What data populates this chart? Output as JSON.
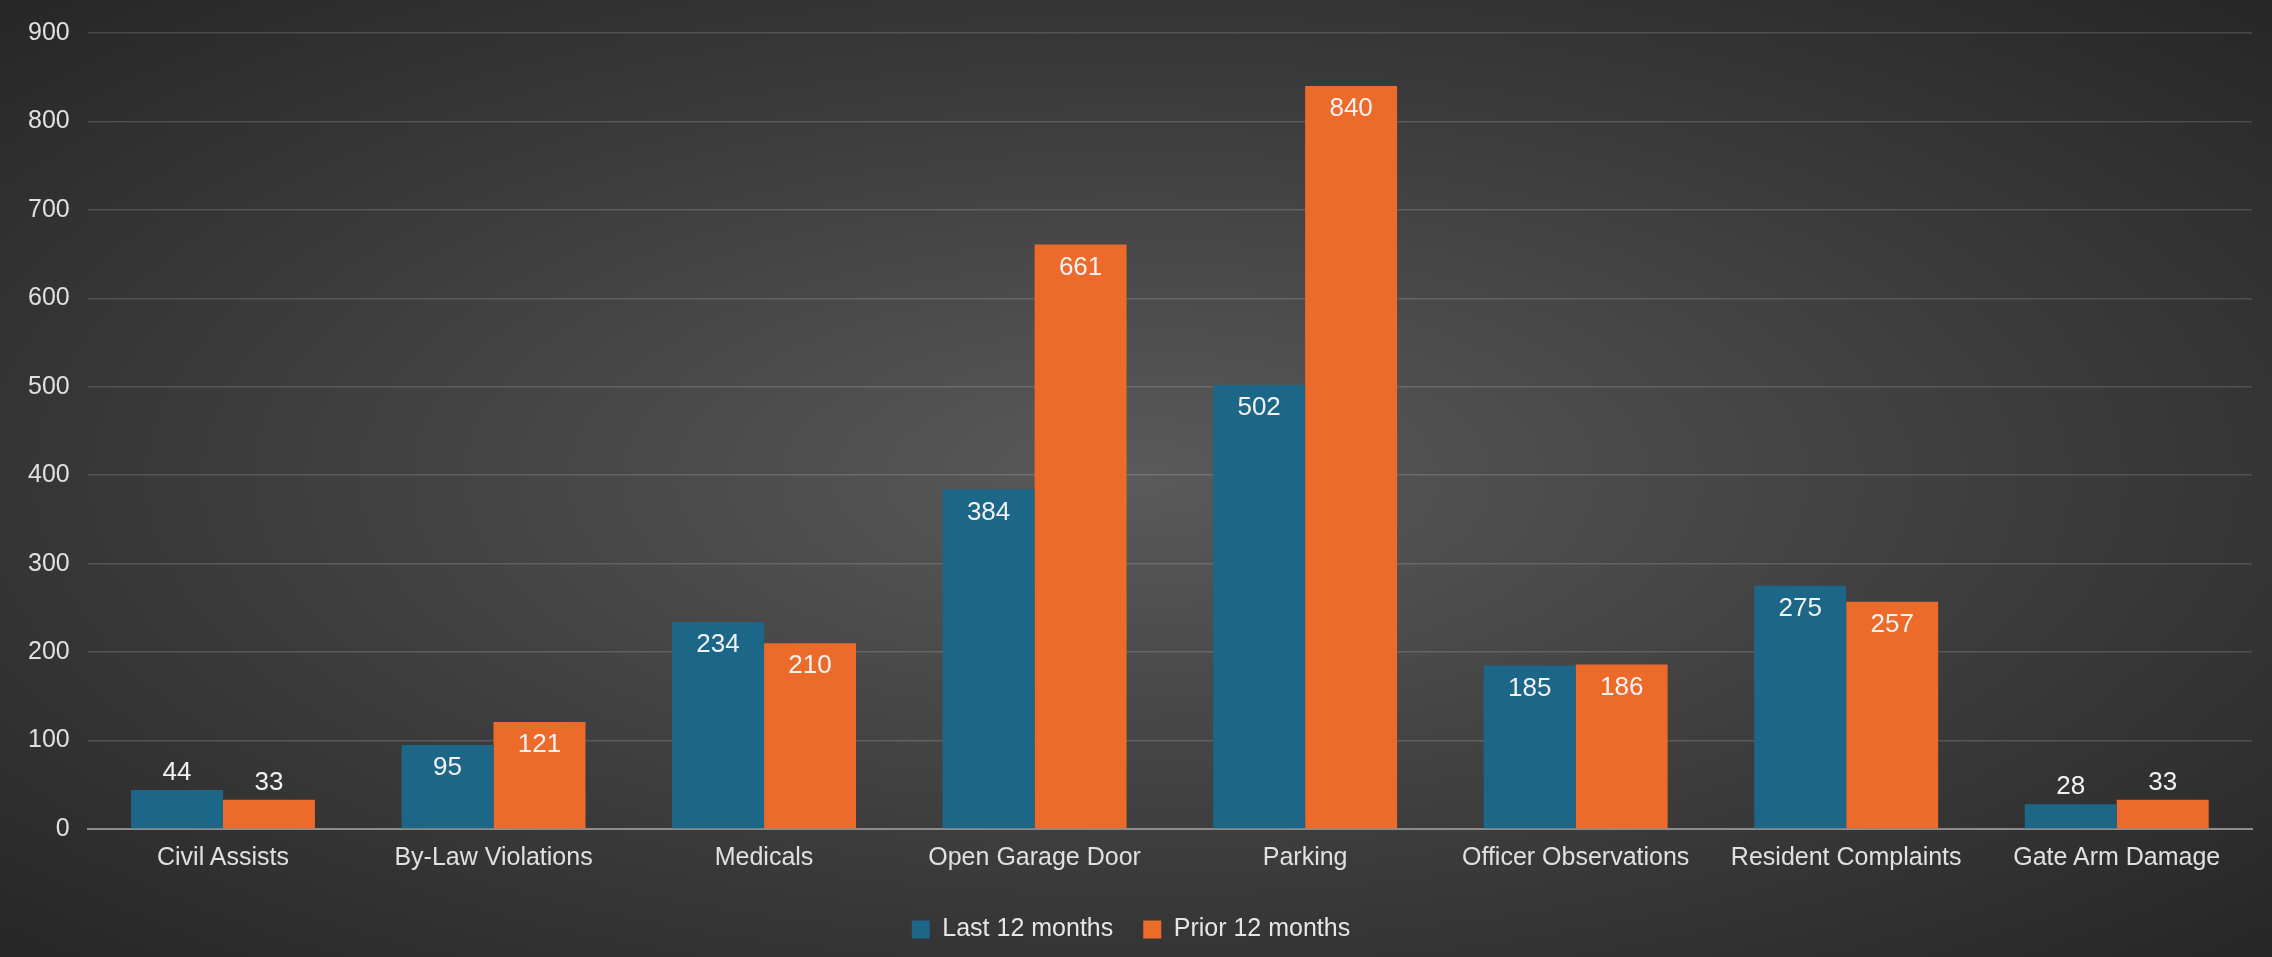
{
  "chart_data": {
    "type": "bar",
    "categories": [
      "Civil Assists",
      "By-Law Violations",
      "Medicals",
      "Open Garage Door",
      "Parking",
      "Officer Observations",
      "Resident Complaints",
      "Gate Arm Damage"
    ],
    "series": [
      {
        "name": "Last 12 months",
        "color": "#1c6688",
        "values": [
          44,
          95,
          234,
          384,
          502,
          185,
          275,
          28
        ]
      },
      {
        "name": "Prior 12 months",
        "color": "#ec6a2a",
        "values": [
          33,
          121,
          210,
          661,
          840,
          186,
          257,
          33
        ]
      }
    ],
    "ylim": [
      0,
      900
    ],
    "yticks": [
      0,
      100,
      200,
      300,
      400,
      500,
      600,
      700,
      800,
      900
    ],
    "grid": "y",
    "legend": "bottom",
    "data_labels": true
  }
}
